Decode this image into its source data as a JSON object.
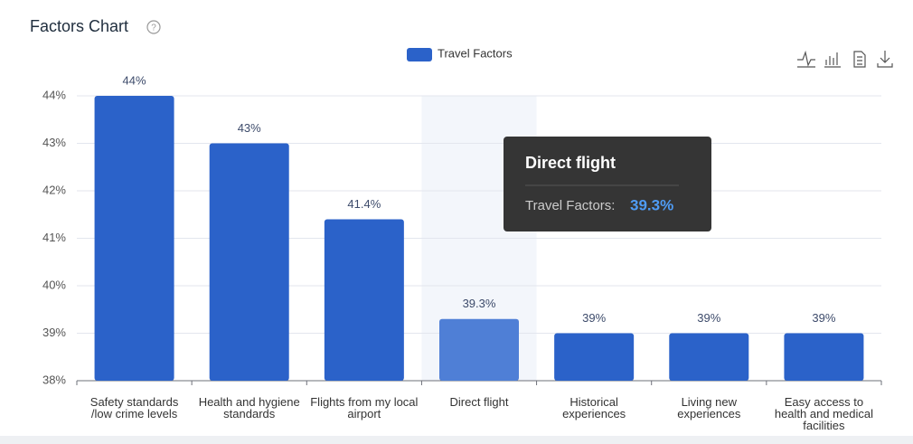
{
  "chart_data": {
    "type": "bar",
    "title": "Factors Chart",
    "categories": [
      "Safety standards /low crime levels",
      "Health and hygiene standards",
      "Flights from my local airport",
      "Direct flight",
      "Historical experiences",
      "Living new experiences",
      "Easy access to health and medical facilities"
    ],
    "series": [
      {
        "name": "Travel Factors",
        "color": "#2b62c9",
        "values": [
          44,
          43,
          41.4,
          39.3,
          39,
          39,
          39
        ],
        "value_labels": [
          "44%",
          "43%",
          "41.4%",
          "39.3%",
          "39%",
          "39%",
          "39%"
        ]
      }
    ],
    "ylim": [
      38,
      44
    ],
    "yticks": [
      {
        "value": 38,
        "label": "38%"
      },
      {
        "value": 39,
        "label": "39%"
      },
      {
        "value": 40,
        "label": "40%"
      },
      {
        "value": 41,
        "label": "41%"
      },
      {
        "value": 42,
        "label": "42%"
      },
      {
        "value": 43,
        "label": "43%"
      },
      {
        "value": 44,
        "label": "44%"
      }
    ],
    "grid": true,
    "legend": "top",
    "tooltip": {
      "title": "Direct flight",
      "series_label": "Travel Factors:",
      "value_label": "39.3%"
    }
  }
}
